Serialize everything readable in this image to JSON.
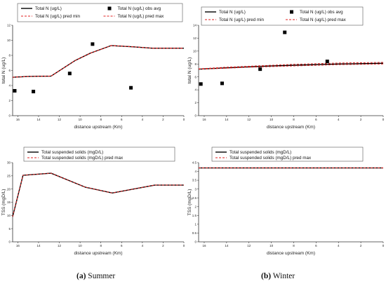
{
  "captions": {
    "a": {
      "letter": "(a)",
      "text": " Summer"
    },
    "b": {
      "letter": "(b)",
      "text": " Winter"
    }
  },
  "colors": {
    "model": "#000000",
    "pred": "#e02020",
    "obs": "#000000"
  },
  "chart_data": [
    {
      "id": "summer_totalN",
      "type": "line",
      "xlabel": "distance upstream (Km)",
      "ylabel": "total N (ug/L)",
      "xlim": [
        16.5,
        0
      ],
      "ylim": [
        0,
        12
      ],
      "xticks": [
        16,
        14,
        12,
        10,
        8,
        6,
        4,
        2,
        0
      ],
      "yticks": [
        0,
        2,
        4,
        6,
        8,
        10,
        12
      ],
      "legend": [
        "Total N (ug/L)",
        "Total N (ug/L) obs avg",
        "Total N (ug/L) pred min",
        "Total N (ug/L) pred max"
      ],
      "series": [
        {
          "name": "Total N (ug/L)",
          "style": "line",
          "color": "#000000",
          "x": [
            16.5,
            15,
            12.8,
            10.5,
            9,
            7,
            5,
            3,
            0
          ],
          "y": [
            5.1,
            5.2,
            5.25,
            7.3,
            8.3,
            9.3,
            9.15,
            8.95,
            8.95
          ]
        },
        {
          "name": "Total N (ug/L) pred min",
          "style": "dashed",
          "color": "#e02020",
          "x": [
            16.5,
            15,
            12.8,
            10.5,
            9,
            7,
            5,
            3,
            0
          ],
          "y": [
            5.1,
            5.2,
            5.25,
            7.3,
            8.3,
            9.3,
            9.15,
            8.95,
            8.95
          ]
        },
        {
          "name": "Total N (ug/L) pred max",
          "style": "dashed",
          "color": "#e02020",
          "x": [
            16.5,
            15,
            12.8,
            10.5,
            9,
            7,
            5,
            3,
            0
          ],
          "y": [
            5.1,
            5.2,
            5.25,
            7.3,
            8.3,
            9.3,
            9.15,
            8.95,
            8.95
          ]
        },
        {
          "name": "Total N (ug/L) obs avg",
          "style": "markers",
          "color": "#000000",
          "x": [
            16.3,
            14.5,
            11,
            8.8,
            5.1
          ],
          "y": [
            3.3,
            3.2,
            5.6,
            9.5,
            3.7
          ]
        }
      ]
    },
    {
      "id": "winter_totalN",
      "type": "line",
      "xlabel": "distance upstream (Km)",
      "ylabel": "total N (ug/L)",
      "xlim": [
        16.5,
        0
      ],
      "ylim": [
        0,
        14
      ],
      "xticks": [
        16,
        14,
        12,
        10,
        8,
        6,
        4,
        2,
        0
      ],
      "yticks": [
        0,
        2,
        4,
        6,
        8,
        10,
        12,
        14
      ],
      "legend": [
        "Total N (ug/L)",
        "Total N (ug/L) obs avg",
        "Total N (ug/L) pred min",
        "Total N (ug/L) pred max"
      ],
      "series": [
        {
          "name": "Total N (ug/L)",
          "style": "line",
          "color": "#000000",
          "x": [
            16.5,
            14,
            12,
            10,
            8,
            6,
            4,
            2,
            0
          ],
          "y": [
            7.2,
            7.4,
            7.55,
            7.7,
            7.8,
            7.9,
            8.0,
            8.05,
            8.1
          ]
        },
        {
          "name": "Total N (ug/L) pred min",
          "style": "dashed",
          "color": "#e02020",
          "x": [
            16.5,
            14,
            12,
            10,
            8,
            6,
            4,
            2,
            0
          ],
          "y": [
            7.2,
            7.35,
            7.5,
            7.6,
            7.7,
            7.8,
            7.9,
            7.95,
            8.0
          ]
        },
        {
          "name": "Total N (ug/L) pred max",
          "style": "dashed",
          "color": "#e02020",
          "x": [
            16.5,
            14,
            12,
            10,
            8,
            6,
            4,
            2,
            0
          ],
          "y": [
            7.25,
            7.5,
            7.65,
            7.8,
            7.95,
            8.05,
            8.15,
            8.2,
            8.25
          ]
        },
        {
          "name": "Total N (ug/L) obs avg",
          "style": "markers",
          "color": "#000000",
          "x": [
            16.3,
            14.4,
            11,
            8.8,
            5
          ],
          "y": [
            4.9,
            5.0,
            7.2,
            12.9,
            8.4
          ]
        }
      ]
    },
    {
      "id": "summer_tss",
      "type": "line",
      "xlabel": "distance upstream (Km)",
      "ylabel": "TSS (mgD/L)",
      "xlim": [
        16.5,
        0
      ],
      "ylim": [
        0,
        30
      ],
      "xticks": [
        16,
        14,
        12,
        10,
        8,
        6,
        4,
        2,
        0
      ],
      "yticks": [
        0,
        5,
        10,
        15,
        20,
        25,
        30
      ],
      "legend": [
        "Total suspended solids (mgD/L)",
        "Total suspended solids (mgD/L) pred max"
      ],
      "series": [
        {
          "name": "Total suspended solids (mgD/L)",
          "style": "line",
          "color": "#000000",
          "x": [
            16.5,
            15.5,
            12.8,
            9.5,
            6.9,
            2.8,
            0
          ],
          "y": [
            9.5,
            25.2,
            26.0,
            20.7,
            18.5,
            21.5,
            21.5
          ]
        },
        {
          "name": "Total suspended solids (mgD/L) pred max",
          "style": "dashed",
          "color": "#e02020",
          "x": [
            16.5,
            15.5,
            12.8,
            9.5,
            6.9,
            2.8,
            0
          ],
          "y": [
            9.5,
            25.2,
            26.0,
            20.7,
            18.5,
            21.5,
            21.5
          ]
        }
      ]
    },
    {
      "id": "winter_tss",
      "type": "line",
      "xlabel": "distance upstream (Km)",
      "ylabel": "TSS (mgD/L)",
      "xlim": [
        16.5,
        0
      ],
      "ylim": [
        0,
        4.5
      ],
      "xticks": [
        16,
        14,
        12,
        10,
        8,
        6,
        4,
        2,
        0
      ],
      "yticks": [
        0,
        0.5,
        1,
        1.5,
        2,
        2.5,
        3,
        3.5,
        4,
        4.5
      ],
      "legend": [
        "Total suspended solids (mgD/L)",
        "Total suspended solids (mgD/L) pred max"
      ],
      "series": [
        {
          "name": "Total suspended solids (mgD/L)",
          "style": "line",
          "color": "#000000",
          "x": [
            16.5,
            0
          ],
          "y": [
            4.2,
            4.2
          ]
        },
        {
          "name": "Total suspended solids (mgD/L) pred max",
          "style": "dashed",
          "color": "#e02020",
          "x": [
            16.5,
            0
          ],
          "y": [
            4.2,
            4.2
          ]
        }
      ]
    }
  ]
}
